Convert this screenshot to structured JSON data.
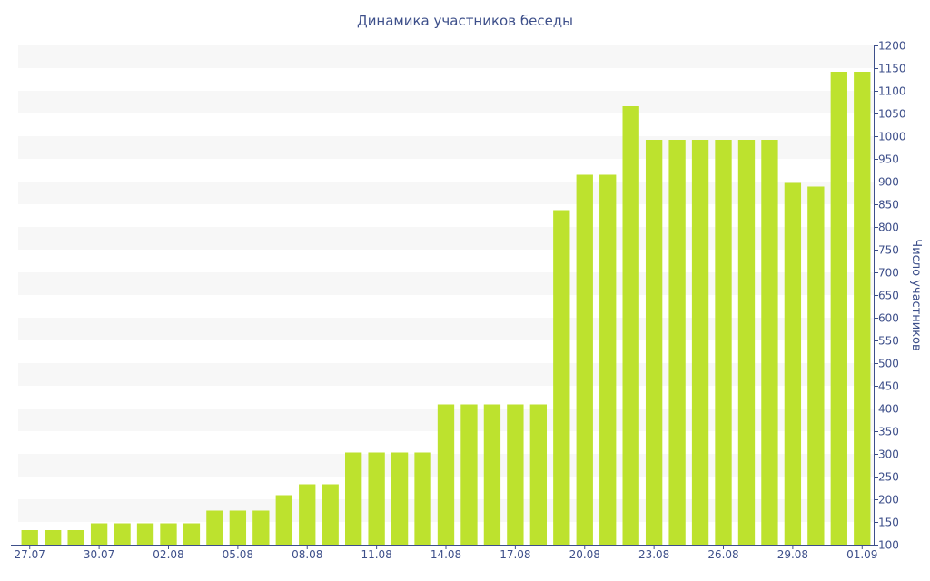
{
  "chart_data": {
    "type": "bar",
    "title": "Динамика участников беседы",
    "xlabel": "",
    "ylabel": "Число участников",
    "ylim": [
      100,
      1200
    ],
    "y_ticks": [
      100,
      150,
      200,
      250,
      300,
      350,
      400,
      450,
      500,
      550,
      600,
      650,
      700,
      750,
      800,
      850,
      900,
      950,
      1000,
      1050,
      1100,
      1150,
      1200
    ],
    "y_axis_position": "right",
    "grid": "alternating horizontal bands",
    "x_tick_labels": [
      "27.07",
      "30.07",
      "02.08",
      "05.08",
      "08.08",
      "11.08",
      "14.08",
      "17.08",
      "20.08",
      "23.08",
      "26.08",
      "29.08",
      "01.09"
    ],
    "categories": [
      "27.07",
      "28.07",
      "29.07",
      "30.07",
      "31.07",
      "01.08",
      "02.08",
      "03.08",
      "04.08",
      "05.08",
      "06.08",
      "07.08",
      "08.08",
      "09.08",
      "10.08",
      "11.08",
      "12.08",
      "13.08",
      "14.08",
      "15.08",
      "16.08",
      "17.08",
      "18.08",
      "19.08",
      "20.08",
      "21.08",
      "22.08",
      "23.08",
      "24.08",
      "25.08",
      "26.08",
      "27.08",
      "28.08",
      "29.08",
      "30.08",
      "31.08",
      "01.09"
    ],
    "values": [
      132,
      132,
      132,
      147,
      147,
      147,
      147,
      147,
      175,
      175,
      175,
      209,
      233,
      233,
      303,
      303,
      303,
      303,
      409,
      409,
      409,
      409,
      409,
      837,
      915,
      915,
      1066,
      992,
      992,
      992,
      992,
      992,
      992,
      897,
      889,
      1142,
      1142
    ],
    "colors": {
      "bar": "#bde22e",
      "band": "#f7f7f7",
      "axis": "#3d4f8a",
      "text": "#3d4f8a"
    }
  }
}
